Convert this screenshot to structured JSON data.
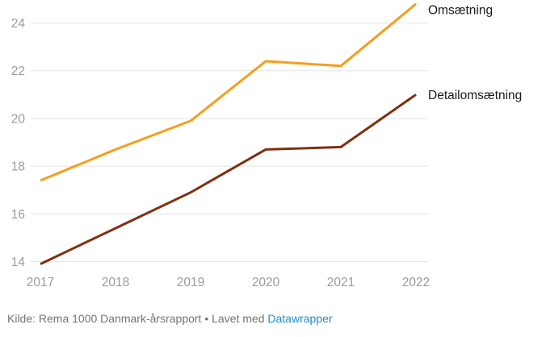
{
  "chart_data": {
    "type": "line",
    "x": [
      "2017",
      "2018",
      "2019",
      "2020",
      "2021",
      "2022"
    ],
    "series": [
      {
        "name": "Omsætning",
        "color": "#F99D1C",
        "values": [
          17.4,
          18.7,
          19.9,
          22.4,
          22.2,
          24.8
        ]
      },
      {
        "name": "Detailomsætning",
        "color": "#803010",
        "values": [
          13.9,
          15.4,
          16.9,
          18.7,
          18.8,
          21.0
        ]
      }
    ],
    "y_ticks": [
      14,
      16,
      18,
      20,
      22,
      24
    ],
    "ylim": [
      13.6,
      25.0
    ],
    "grid": true,
    "legend_position": "right-end-of-line",
    "title": "",
    "xlabel": "",
    "ylabel": ""
  },
  "colors": {
    "background": "#FFFFFF",
    "gridline": "#E4E4E4",
    "tick_label": "#9B9B9B",
    "legend_label": "#1A1A1A",
    "footer_text": "#747474",
    "link": "#1E8CD3"
  },
  "footer": {
    "source_text": "Kilde: Rema 1000 Danmark-årsrapport • Lavet med ",
    "link_label": "Datawrapper"
  }
}
